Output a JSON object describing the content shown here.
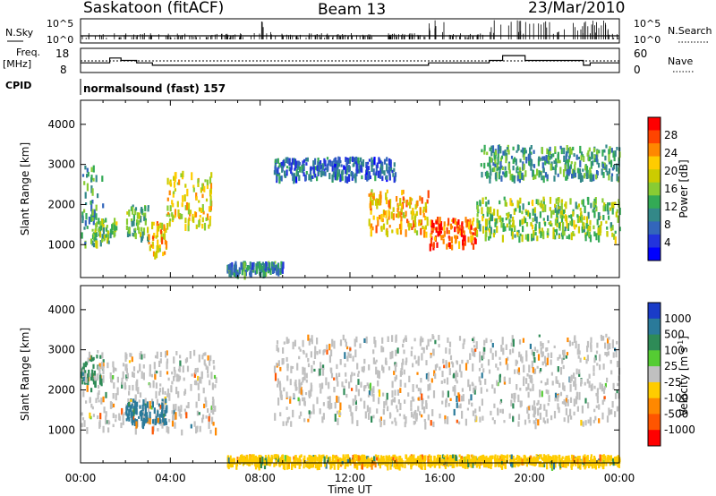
{
  "header": {
    "station": "Saskatoon (fitACF)",
    "beam": "Beam 13",
    "date": "23/Mar/2010"
  },
  "noise_panel": {
    "left_label": "N.Sky",
    "right_label": "N.Search",
    "y_ticks": [
      "10^5",
      "10^0"
    ]
  },
  "freq_panel": {
    "left_label_1": "Freq.",
    "left_label_2": "[MHz]",
    "left_ticks": [
      "18",
      "8"
    ],
    "right_label": "Nave",
    "right_ticks": [
      "60",
      "0"
    ],
    "cpid_label": "CPID",
    "mode_text": "normalsound (fast) 157"
  },
  "power_panel": {
    "ylabel": "Slant Range [km]",
    "colorbar_label": "Power [dB]",
    "colorbar_ticks": [
      "28",
      "24",
      "20",
      "16",
      "12",
      "8",
      "4"
    ],
    "colorbar_colors": [
      "#ff0000",
      "#ff4400",
      "#ff8800",
      "#ffcc00",
      "#cccc00",
      "#88cc33",
      "#33aa55",
      "#338888",
      "#3366bb",
      "#2233dd",
      "#0000ff"
    ]
  },
  "velocity_panel": {
    "ylabel": "Slant Range [km]",
    "colorbar_label": "Velocity [m s",
    "colorbar_label_sup": "-1",
    "colorbar_label_end": "]",
    "colorbar_ticks": [
      "1000",
      "500",
      "100",
      "25",
      "-25",
      "-100",
      "-500",
      "-1000"
    ],
    "colorbar_colors": [
      "#1a3cc8",
      "#2a7a9a",
      "#2e8b57",
      "#55cc33",
      "#c0c0c0",
      "#ffcc00",
      "#ff8800",
      "#ff5500",
      "#ff0000"
    ],
    "ground_scatter_color": "#c0c0c0"
  },
  "x_axis": {
    "label": "Time UT",
    "ticks": [
      "00:00",
      "04:00",
      "08:00",
      "12:00",
      "16:00",
      "20:00",
      "00:00"
    ]
  },
  "chart_data": {
    "type": "heatmap",
    "title": "Saskatoon (fitACF) Beam 13 23/Mar/2010",
    "xlabel": "Time UT",
    "ylabel": "Slant Range [km]",
    "xlim_hours": [
      0,
      24
    ],
    "ylim_km": [
      180,
      4600
    ],
    "y_ticks_km": [
      1000,
      2000,
      3000,
      4000
    ],
    "x_tick_hours": [
      0,
      4,
      8,
      12,
      16,
      20,
      24
    ],
    "freq_mhz": {
      "ylim": [
        8,
        18
      ],
      "segments": [
        {
          "t0": 0,
          "t1": 1.3,
          "value": 12
        },
        {
          "t0": 1.3,
          "t1": 1.8,
          "value": 14
        },
        {
          "t0": 1.8,
          "t1": 2.5,
          "value": 13
        },
        {
          "t0": 2.5,
          "t1": 3.2,
          "value": 12
        },
        {
          "t0": 3.2,
          "t1": 5.8,
          "value": 11
        },
        {
          "t0": 5.8,
          "t1": 15.5,
          "value": 11
        },
        {
          "t0": 15.5,
          "t1": 17.5,
          "value": 12
        },
        {
          "t0": 17.5,
          "t1": 18.2,
          "value": 12
        },
        {
          "t0": 18.2,
          "t1": 18.8,
          "value": 13
        },
        {
          "t0": 18.8,
          "t1": 19.8,
          "value": 15
        },
        {
          "t0": 19.8,
          "t1": 22.4,
          "value": 13
        },
        {
          "t0": 22.4,
          "t1": 22.7,
          "value": 11
        },
        {
          "t0": 22.7,
          "t1": 24,
          "value": 12
        }
      ],
      "nave_dotted_level": 12
    },
    "power_regions": [
      {
        "t0": 0.0,
        "t1": 1.0,
        "r0": 1000,
        "r1": 3000,
        "db": 12
      },
      {
        "t0": 0.5,
        "t1": 1.6,
        "r0": 1100,
        "r1": 1700,
        "db": 16
      },
      {
        "t0": 2.0,
        "t1": 3.0,
        "r0": 1200,
        "r1": 2000,
        "db": 14
      },
      {
        "t0": 3.0,
        "t1": 3.8,
        "r0": 800,
        "r1": 1600,
        "db": 22
      },
      {
        "t0": 3.8,
        "t1": 5.8,
        "r0": 1500,
        "r1": 2900,
        "db": 20
      },
      {
        "t0": 8.6,
        "t1": 14.0,
        "r0": 2700,
        "r1": 3200,
        "db": 8
      },
      {
        "t0": 12.8,
        "t1": 15.5,
        "r0": 1300,
        "r1": 2400,
        "db": 22
      },
      {
        "t0": 15.5,
        "t1": 17.6,
        "r0": 1000,
        "r1": 1700,
        "db": 26
      },
      {
        "t0": 17.6,
        "t1": 24.0,
        "r0": 1200,
        "r1": 2200,
        "db": 16
      },
      {
        "t0": 17.8,
        "t1": 24.0,
        "r0": 2700,
        "r1": 3500,
        "db": 12
      },
      {
        "t0": 6.5,
        "t1": 9.0,
        "r0": 300,
        "r1": 600,
        "db": 10
      }
    ],
    "velocity_regions": [
      {
        "t0": 0.0,
        "t1": 1.0,
        "r0": 2200,
        "r1": 2900,
        "v": 250
      },
      {
        "t0": 0.0,
        "t1": 6.0,
        "r0": 1000,
        "r1": 3000,
        "v": 0
      },
      {
        "t0": 2.0,
        "t1": 3.8,
        "r0": 1200,
        "r1": 1800,
        "v": 500
      },
      {
        "t0": 8.6,
        "t1": 24.0,
        "r0": 1200,
        "r1": 3400,
        "v": 0
      },
      {
        "t0": 6.5,
        "t1": 24.0,
        "r0": 180,
        "r1": 400,
        "v": -100
      }
    ]
  }
}
